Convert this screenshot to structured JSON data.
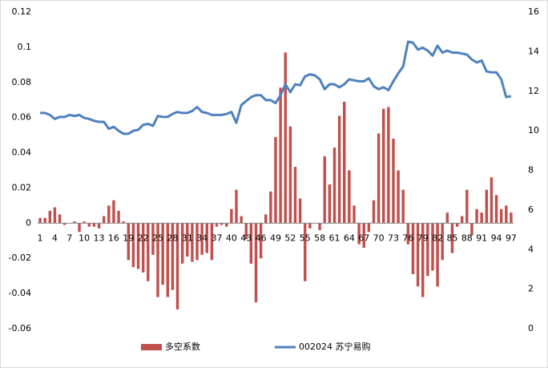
{
  "chart_data": {
    "type": "bar-line",
    "categories": [
      "1",
      null,
      null,
      "4",
      null,
      null,
      "7",
      null,
      null,
      "10",
      null,
      null,
      "13",
      null,
      null,
      "16",
      null,
      null,
      "19",
      null,
      null,
      "22",
      null,
      null,
      "25",
      null,
      null,
      "28",
      null,
      null,
      "31",
      null,
      null,
      "34",
      null,
      null,
      "37",
      null,
      null,
      "40",
      null,
      null,
      "43",
      null,
      null,
      "46",
      null,
      null,
      "49",
      null,
      null,
      "52",
      null,
      null,
      "55",
      null,
      null,
      "58",
      null,
      null,
      "61",
      null,
      null,
      "64",
      null,
      null,
      "67",
      null,
      null,
      "70",
      null,
      null,
      "73",
      null,
      null,
      "76",
      null,
      null,
      "79",
      null,
      null,
      "82",
      null,
      null,
      "85",
      null,
      null,
      "88",
      null,
      null,
      "91",
      null,
      null,
      "94",
      null,
      null,
      "97"
    ],
    "series": [
      {
        "name": "多空系数",
        "kind": "bar",
        "color": "#c0504d",
        "values": [
          0.003,
          0.003,
          0.007,
          0.009,
          0.005,
          -0.001,
          0,
          0.001,
          -0.005,
          0.001,
          -0.002,
          -0.002,
          -0.003,
          0.004,
          0.01,
          0.013,
          0.007,
          0.001,
          -0.021,
          -0.025,
          -0.026,
          -0.028,
          -0.033,
          -0.018,
          -0.042,
          -0.035,
          -0.042,
          -0.038,
          -0.049,
          -0.023,
          -0.019,
          -0.022,
          -0.021,
          -0.018,
          -0.017,
          -0.021,
          -0.002,
          -0.001,
          -0.002,
          0.008,
          0.019,
          0.004,
          -0.009,
          -0.023,
          -0.045,
          -0.02,
          0.005,
          0.018,
          0.049,
          0.077,
          0.097,
          0.055,
          0.032,
          0.014,
          -0.033,
          -0.003,
          0,
          -0.004,
          0.038,
          0.022,
          0.043,
          0.061,
          0.069,
          0.03,
          0.01,
          -0.012,
          -0.014,
          -0.005,
          0.013,
          0.051,
          0.065,
          0.066,
          0.048,
          0.03,
          0.019,
          -0.012,
          -0.029,
          -0.036,
          -0.042,
          -0.03,
          -0.027,
          -0.036,
          -0.021,
          0.006,
          -0.017,
          -0.002,
          0.004,
          0.019,
          -0.007,
          0.008,
          0.006,
          0.019,
          0.026,
          0.016,
          0.008,
          0.01,
          0.006
        ]
      },
      {
        "name": "002024 苏宁易购",
        "kind": "line",
        "axis": "y2",
        "color": "#4f81bd",
        "values": [
          10.9,
          10.9,
          10.8,
          10.6,
          10.7,
          10.7,
          10.8,
          10.75,
          10.8,
          10.65,
          10.6,
          10.5,
          10.45,
          10.45,
          10.1,
          10.2,
          10.0,
          9.85,
          9.85,
          10.0,
          10.05,
          10.3,
          10.35,
          10.25,
          10.75,
          10.7,
          10.7,
          10.85,
          10.95,
          10.9,
          10.9,
          11.0,
          11.2,
          10.95,
          10.9,
          10.8,
          10.8,
          10.8,
          10.85,
          10.95,
          10.4,
          11.3,
          11.5,
          11.7,
          11.8,
          11.8,
          11.55,
          11.55,
          11.4,
          11.8,
          12.35,
          11.95,
          12.35,
          12.3,
          12.75,
          12.85,
          12.8,
          12.6,
          12.1,
          12.35,
          12.35,
          12.2,
          12.35,
          12.6,
          12.55,
          12.5,
          12.5,
          12.65,
          12.25,
          12.1,
          12.2,
          12.05,
          12.5,
          12.9,
          13.25,
          14.5,
          14.45,
          14.1,
          14.2,
          14.05,
          13.8,
          14.3,
          13.95,
          14.05,
          13.95,
          13.95,
          13.9,
          13.85,
          13.6,
          13.45,
          13.55,
          13.0,
          12.95,
          12.95,
          12.6,
          11.7,
          11.75
        ]
      }
    ],
    "ylim": [
      -0.06,
      0.12
    ],
    "yticks": [
      -0.06,
      -0.04,
      -0.02,
      0,
      0.02,
      0.04,
      0.06,
      0.08,
      0.1,
      0.12
    ],
    "y2lim": [
      0,
      16
    ],
    "y2ticks": [
      0,
      2,
      4,
      6,
      8,
      10,
      12,
      14,
      16
    ],
    "grid": false,
    "legend": "bottom"
  }
}
